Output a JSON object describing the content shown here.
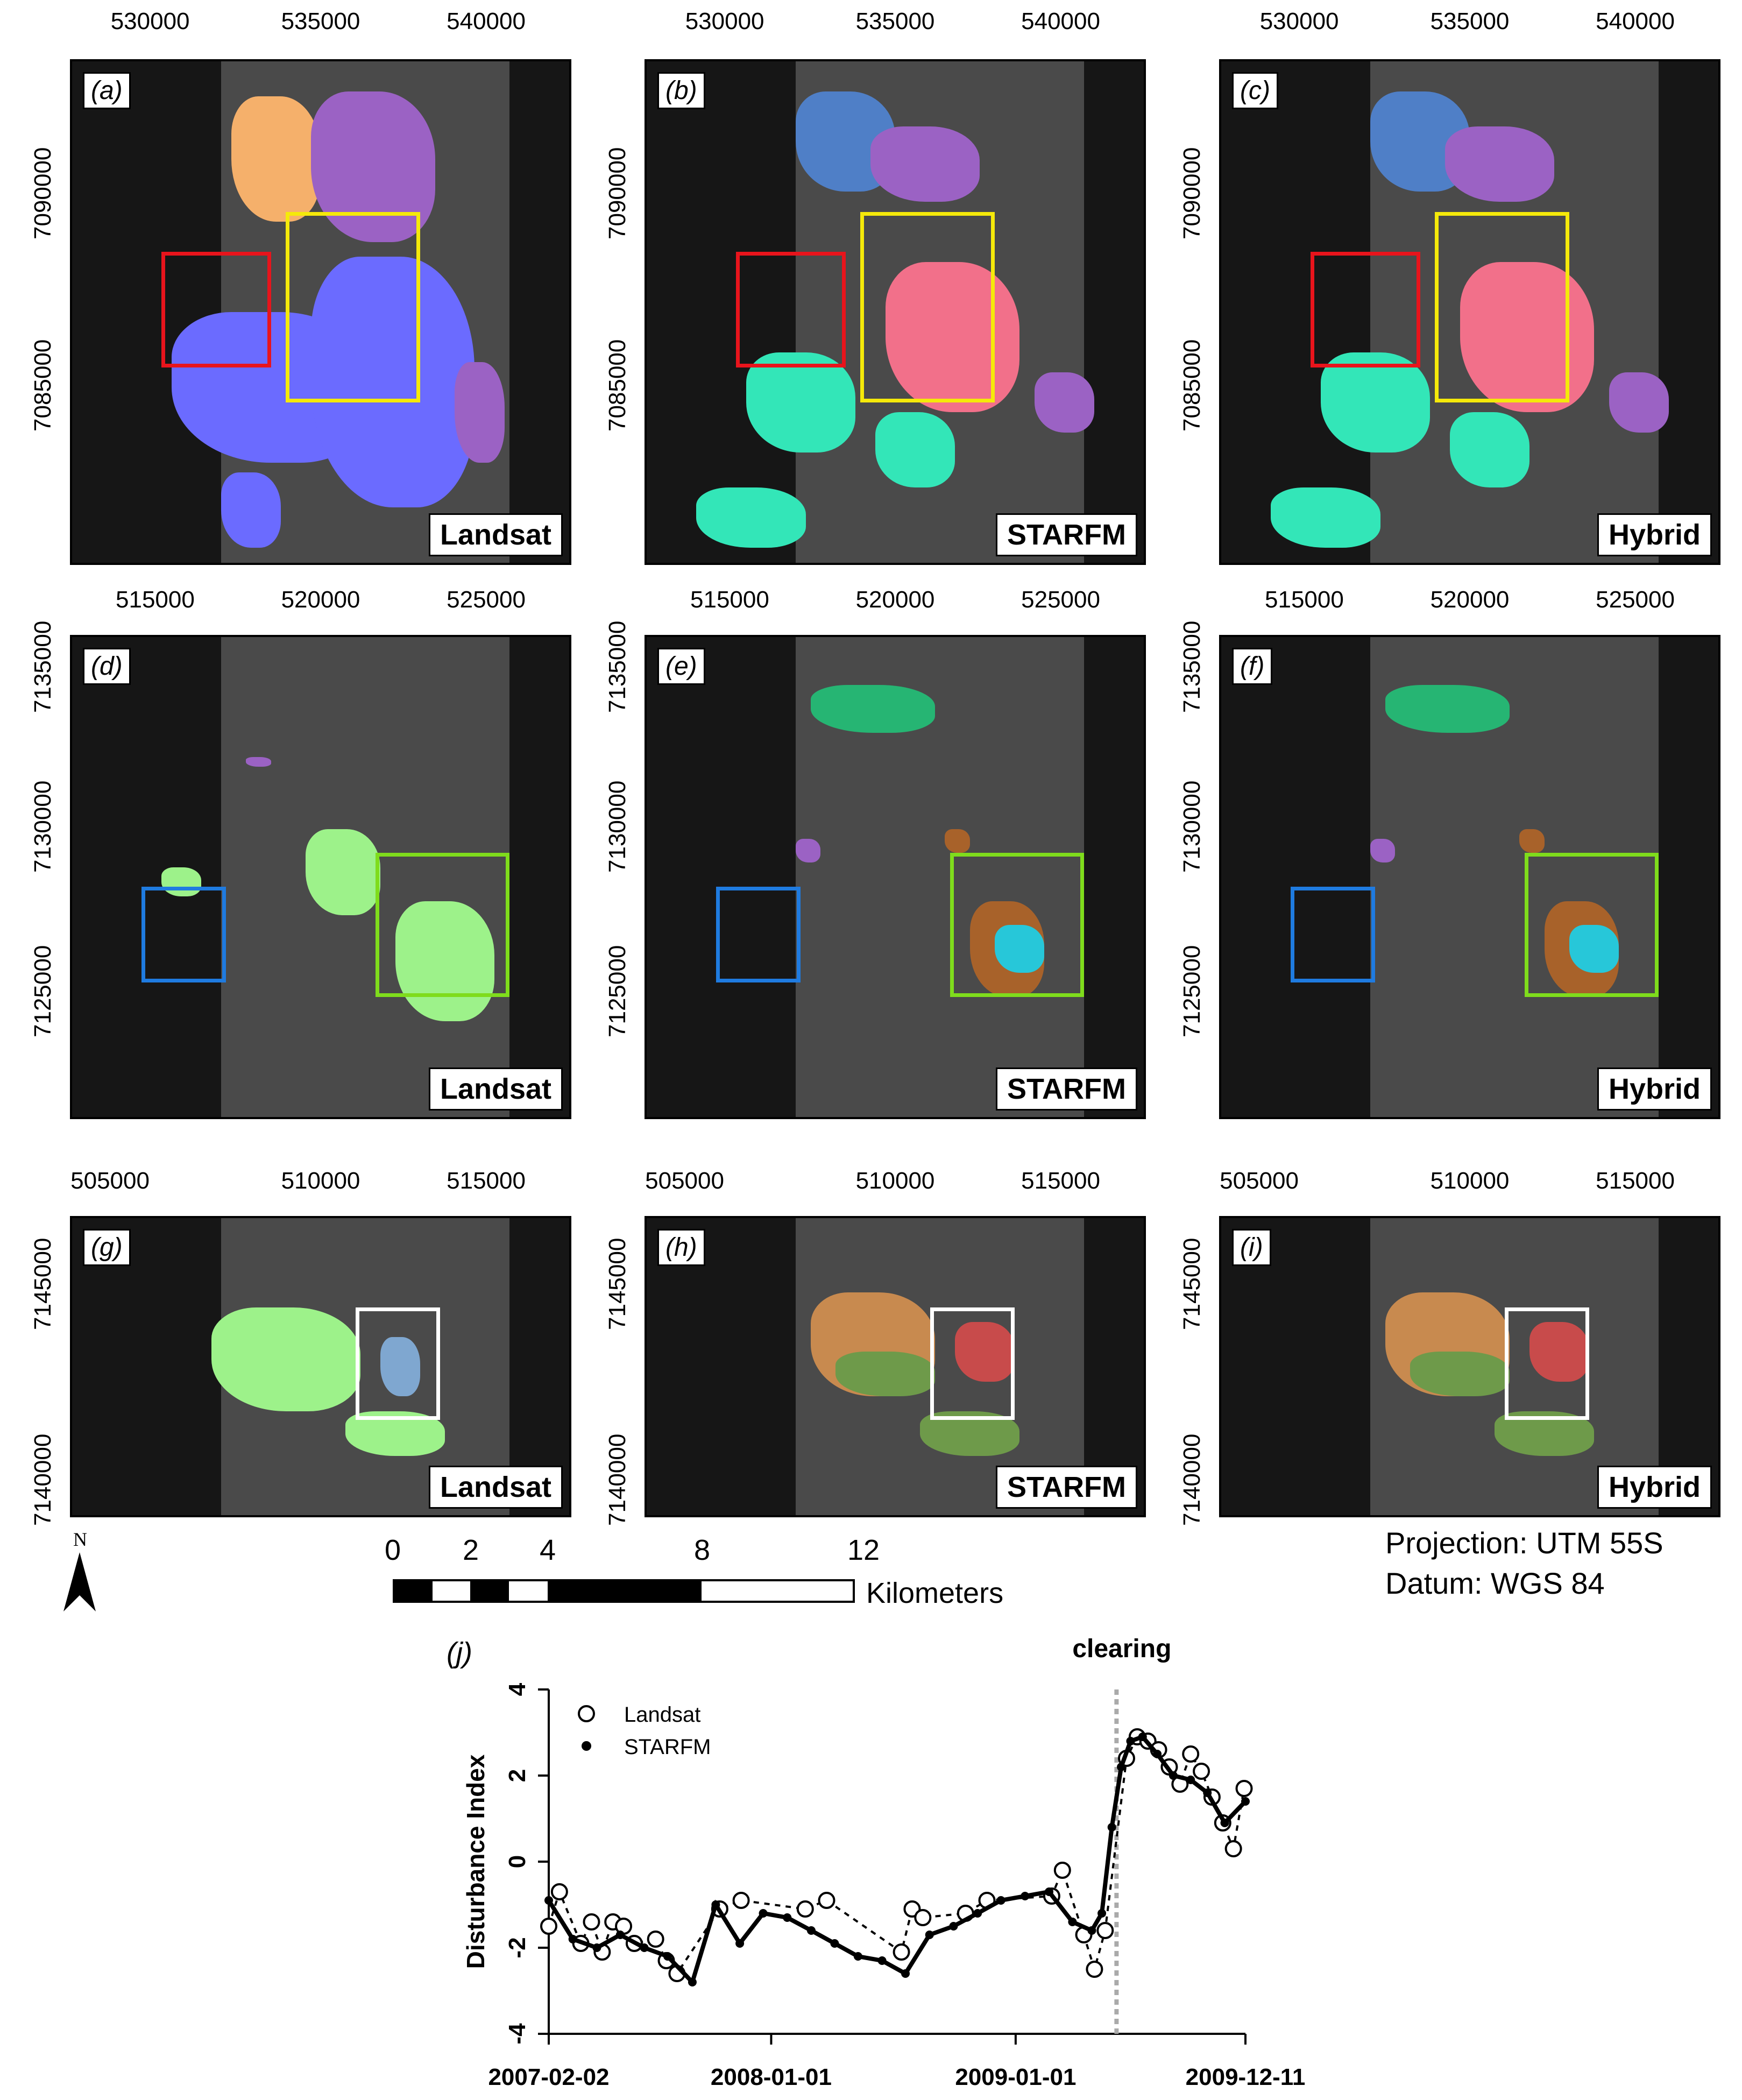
{
  "panels": [
    {
      "id": "a",
      "label": "(a)",
      "sensor": "Landsat",
      "xticks": [
        "530000",
        "535000",
        "540000"
      ],
      "yticks": [
        "7090000",
        "7085000"
      ],
      "theme": "landsat1"
    },
    {
      "id": "b",
      "label": "(b)",
      "sensor": "STARFM",
      "xticks": [
        "530000",
        "535000",
        "540000"
      ],
      "yticks": [
        "7090000",
        "7085000"
      ],
      "theme": "starfm1"
    },
    {
      "id": "c",
      "label": "(c)",
      "sensor": "Hybrid",
      "xticks": [
        "530000",
        "535000",
        "540000"
      ],
      "yticks": [
        "7090000",
        "7085000"
      ],
      "theme": "starfm1"
    },
    {
      "id": "d",
      "label": "(d)",
      "sensor": "Landsat",
      "xticks": [
        "515000",
        "520000",
        "525000"
      ],
      "yticks": [
        "7135000",
        "7130000",
        "7125000"
      ],
      "theme": "landsat2"
    },
    {
      "id": "e",
      "label": "(e)",
      "sensor": "STARFM",
      "xticks": [
        "515000",
        "520000",
        "525000"
      ],
      "yticks": [
        "7135000",
        "7130000",
        "7125000"
      ],
      "theme": "starfm2"
    },
    {
      "id": "f",
      "label": "(f)",
      "sensor": "Hybrid",
      "xticks": [
        "515000",
        "520000",
        "525000"
      ],
      "yticks": [
        "7135000",
        "7130000",
        "7125000"
      ],
      "theme": "starfm2"
    },
    {
      "id": "g",
      "label": "(g)",
      "sensor": "Landsat",
      "xticks": [
        "505000",
        "510000",
        "515000"
      ],
      "yticks": [
        "7145000",
        "7140000"
      ],
      "theme": "landsat3"
    },
    {
      "id": "h",
      "label": "(h)",
      "sensor": "STARFM",
      "xticks": [
        "505000",
        "510000",
        "515000"
      ],
      "yticks": [
        "7145000",
        "7140000"
      ],
      "theme": "starfm3"
    },
    {
      "id": "i",
      "label": "(i)",
      "sensor": "Hybrid",
      "xticks": [
        "505000",
        "510000",
        "515000"
      ],
      "yticks": [
        "7145000",
        "7140000"
      ],
      "theme": "starfm3"
    }
  ],
  "colors": {
    "red_box": "#e8141c",
    "yellow_box": "#f5e90a",
    "blue_box": "#1f7be0",
    "green_box": "#7fdc1c",
    "white_box": "#ffffff",
    "map_bg": "#4a4a4a",
    "landsat_blue": "#6b6bff",
    "starfm_pink": "#f2708a",
    "starfm_teal": "#33e6b8",
    "landsat_green": "#9df28a",
    "starfm_brown": "#a8622a",
    "starfm_cyan": "#27c7d9",
    "orange": "#f5b06b",
    "purple": "#9b62c4"
  },
  "scale": {
    "ticks": [
      "0",
      "2",
      "4",
      "8",
      "12"
    ],
    "unit": "Kilometers",
    "north_label": "N"
  },
  "projection": {
    "line1": "Projection: UTM 55S",
    "line2": "Datum: WGS 84"
  },
  "chart_data": {
    "type": "line",
    "panel_label": "(j)",
    "ylabel": "Disturbance Index",
    "xlabel": "",
    "ylim": [
      -4,
      4
    ],
    "yticks": [
      "4",
      "2",
      "0",
      "-2",
      "-4"
    ],
    "xticks": [
      "2007-02-02",
      "2008-01-01",
      "2009-01-01",
      "2009-12-11"
    ],
    "xrange": [
      "2007-02-02",
      "2009-12-11"
    ],
    "annotation": {
      "label": "clearing",
      "date": "2009-06-01"
    },
    "legend": {
      "position": "top-left",
      "entries": [
        "Landsat",
        "STARFM"
      ]
    },
    "series": [
      {
        "name": "Landsat",
        "marker": "open-circle",
        "line": "dashed",
        "x": [
          "2007-02-02",
          "2007-02-18",
          "2007-03-22",
          "2007-04-07",
          "2007-04-23",
          "2007-05-09",
          "2007-05-25",
          "2007-06-10",
          "2007-07-12",
          "2007-07-28",
          "2007-08-13",
          "2007-10-16",
          "2007-11-17",
          "2008-02-21",
          "2008-03-24",
          "2008-07-14",
          "2008-07-30",
          "2008-08-15",
          "2008-10-18",
          "2008-11-19",
          "2009-02-24",
          "2009-03-12",
          "2009-04-13",
          "2009-04-29",
          "2009-05-15",
          "2009-06-16",
          "2009-07-02",
          "2009-07-18",
          "2009-08-03",
          "2009-08-19",
          "2009-09-04",
          "2009-09-20",
          "2009-10-06",
          "2009-10-22",
          "2009-11-07",
          "2009-11-23",
          "2009-12-09"
        ],
        "y": [
          -1.5,
          -0.7,
          -1.9,
          -1.4,
          -2.1,
          -1.4,
          -1.5,
          -1.9,
          -1.8,
          -2.3,
          -2.6,
          -1.1,
          -0.9,
          -1.1,
          -0.9,
          -2.1,
          -1.1,
          -1.3,
          -1.2,
          -0.9,
          -0.8,
          -0.2,
          -1.7,
          -2.5,
          -1.6,
          2.4,
          2.9,
          2.8,
          2.6,
          2.2,
          1.8,
          2.5,
          2.1,
          1.5,
          0.9,
          0.3,
          1.7
        ]
      },
      {
        "name": "STARFM",
        "marker": "filled-circle",
        "line": "solid",
        "x": [
          "2007-02-02",
          "2007-03-10",
          "2007-04-15",
          "2007-05-20",
          "2007-06-25",
          "2007-07-30",
          "2007-09-05",
          "2007-10-10",
          "2007-11-15",
          "2007-12-20",
          "2008-01-25",
          "2008-03-01",
          "2008-04-05",
          "2008-05-10",
          "2008-06-15",
          "2008-07-20",
          "2008-08-25",
          "2008-09-30",
          "2008-11-05",
          "2008-12-10",
          "2009-01-15",
          "2009-02-20",
          "2009-03-27",
          "2009-04-25",
          "2009-05-10",
          "2009-05-25",
          "2009-06-08",
          "2009-06-22",
          "2009-07-10",
          "2009-08-01",
          "2009-08-25",
          "2009-09-20",
          "2009-10-15",
          "2009-11-10",
          "2009-12-11"
        ],
        "y": [
          -0.9,
          -1.8,
          -2.0,
          -1.7,
          -2.0,
          -2.2,
          -2.8,
          -1.0,
          -1.9,
          -1.2,
          -1.3,
          -1.6,
          -1.9,
          -2.2,
          -2.3,
          -2.6,
          -1.7,
          -1.5,
          -1.2,
          -0.9,
          -0.8,
          -0.7,
          -1.4,
          -1.6,
          -1.2,
          0.8,
          2.2,
          2.8,
          2.9,
          2.5,
          2.0,
          1.9,
          1.6,
          0.9,
          1.4
        ]
      }
    ]
  }
}
